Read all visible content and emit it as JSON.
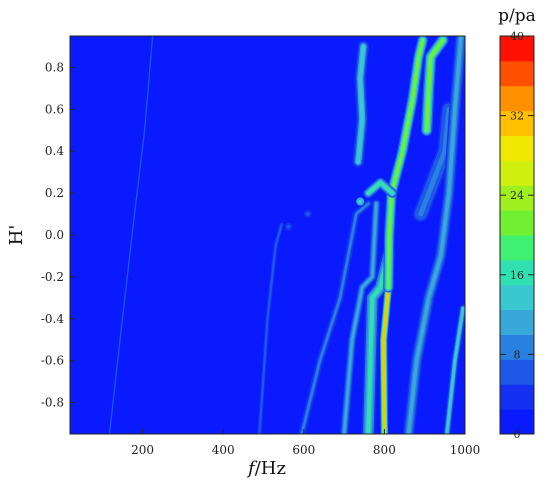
{
  "chart_data": {
    "type": "heatmap",
    "title": "",
    "xlabel": {
      "italic": "f",
      "rest": "/Hz"
    },
    "ylabel": "H'",
    "xlim": [
      20,
      1000
    ],
    "ylim": [
      -0.95,
      0.95
    ],
    "xticks": [
      200,
      400,
      600,
      800,
      1000
    ],
    "yticks": [
      0.8,
      0.6,
      0.4,
      0.2,
      0.0,
      -0.2,
      -0.4,
      -0.6,
      -0.8
    ],
    "ytick_labels": [
      "0.8",
      "0.6",
      "0.4",
      "0.2",
      "0.0",
      "-0.2",
      "-0.4",
      "-0.6",
      "-0.8"
    ],
    "colorbar": {
      "title": "p/pa",
      "range": [
        0,
        40
      ],
      "ticks": [
        0,
        8,
        16,
        24,
        32,
        40
      ],
      "tick_labels": [
        "0",
        "8",
        "16",
        "24",
        "32",
        "40"
      ],
      "colors": [
        "#0a1aff",
        "#1430f0",
        "#1e58e8",
        "#2a80e0",
        "#38a8d8",
        "#3ac8d0",
        "#30e0b0",
        "#40f070",
        "#70f030",
        "#a0f020",
        "#d0f010",
        "#f0e800",
        "#ffc000",
        "#ff9000",
        "#ff5000",
        "#ff1000"
      ]
    },
    "background_value": 1,
    "ridges": [
      {
        "name": "",
        "width_hz": 3,
        "value": 6,
        "points": [
          [
            118,
            -0.95
          ],
          [
            150,
            -0.4
          ],
          [
            180,
            0.1
          ],
          [
            205,
            0.5
          ],
          [
            225,
            0.95
          ]
        ]
      },
      {
        "name": "",
        "width_hz": 8,
        "value": 7,
        "points": [
          [
            490,
            -0.95
          ],
          [
            510,
            -0.4
          ],
          [
            530,
            -0.05
          ],
          [
            545,
            0.05
          ]
        ]
      },
      {
        "name": "",
        "width_hz": 14,
        "value": 8,
        "points": [
          [
            595,
            -0.95
          ],
          [
            640,
            -0.6
          ],
          [
            690,
            -0.3
          ],
          [
            730,
            0.1
          ],
          [
            760,
            0.15
          ]
        ]
      },
      {
        "name": "",
        "width_hz": 16,
        "value": 10,
        "points": [
          [
            700,
            -0.95
          ],
          [
            720,
            -0.5
          ],
          [
            745,
            -0.25
          ],
          [
            770,
            -0.2
          ],
          [
            780,
            0.15
          ]
        ]
      },
      {
        "name": "",
        "width_hz": 22,
        "value": 13,
        "points": [
          [
            735,
            0.35
          ],
          [
            745,
            0.55
          ],
          [
            740,
            0.75
          ],
          [
            748,
            0.9
          ]
        ]
      },
      {
        "name": "",
        "width_hz": 26,
        "value": 16,
        "points": [
          [
            760,
            -0.95
          ],
          [
            770,
            -0.3
          ],
          [
            790,
            -0.25
          ],
          [
            810,
            -0.1
          ]
        ]
      },
      {
        "name": "",
        "width_hz": 14,
        "value": 30,
        "points": [
          [
            800,
            -0.95
          ],
          [
            798,
            -0.5
          ],
          [
            810,
            -0.25
          ]
        ]
      },
      {
        "name": "",
        "width_hz": 20,
        "value": 22,
        "points": [
          [
            810,
            -0.25
          ],
          [
            812,
            0.0
          ],
          [
            818,
            0.2
          ],
          [
            845,
            0.4
          ],
          [
            870,
            0.65
          ],
          [
            885,
            0.85
          ],
          [
            895,
            0.93
          ]
        ]
      },
      {
        "name": "",
        "width_hz": 18,
        "value": 17,
        "points": [
          [
            820,
            0.2
          ],
          [
            790,
            0.25
          ],
          [
            760,
            0.2
          ]
        ]
      },
      {
        "name": "",
        "width_hz": 22,
        "value": 20,
        "points": [
          [
            905,
            0.5
          ],
          [
            910,
            0.7
          ],
          [
            915,
            0.85
          ],
          [
            945,
            0.93
          ]
        ]
      },
      {
        "name": "",
        "width_hz": 30,
        "value": 9,
        "points": [
          [
            890,
            0.1
          ],
          [
            920,
            0.25
          ],
          [
            950,
            0.4
          ],
          [
            960,
            0.6
          ]
        ]
      },
      {
        "name": "",
        "width_hz": 22,
        "value": 11,
        "points": [
          [
            860,
            -0.95
          ],
          [
            880,
            -0.6
          ],
          [
            910,
            -0.3
          ],
          [
            940,
            -0.1
          ],
          [
            960,
            0.2
          ],
          [
            975,
            0.6
          ],
          [
            990,
            0.95
          ]
        ]
      },
      {
        "name": "",
        "width_hz": 14,
        "value": 13,
        "points": [
          [
            955,
            -0.95
          ],
          [
            975,
            -0.6
          ],
          [
            995,
            -0.35
          ]
        ]
      }
    ],
    "spots": [
      {
        "x": 562,
        "y": 0.04,
        "value": 7
      },
      {
        "x": 610,
        "y": 0.1,
        "value": 7
      },
      {
        "x": 740,
        "y": 0.16,
        "value": 17
      }
    ],
    "grid": false,
    "legend": "colorbar-right"
  }
}
